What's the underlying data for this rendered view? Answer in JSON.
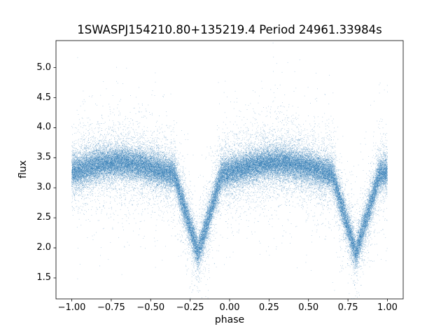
{
  "figure": {
    "background": "#ffffff"
  },
  "chart_data": {
    "type": "scatter",
    "title": "1SWASPJ154210.80+135219.4 Period 24961.33984s",
    "xlabel": "phase",
    "ylabel": "flux",
    "xlim": [
      -1.1,
      1.1
    ],
    "ylim": [
      1.15,
      5.45
    ],
    "grid": false,
    "legend": null,
    "xticks": {
      "values": [
        -1.0,
        -0.75,
        -0.5,
        -0.25,
        0.0,
        0.25,
        0.5,
        0.75,
        1.0
      ],
      "labels": [
        "−1.00",
        "−0.75",
        "−0.50",
        "−0.25",
        "0.00",
        "0.25",
        "0.50",
        "0.75",
        "1.00"
      ]
    },
    "yticks": {
      "values": [
        1.5,
        2.0,
        2.5,
        3.0,
        3.5,
        4.0,
        4.5,
        5.0
      ],
      "labels": [
        "1.5",
        "2.0",
        "2.5",
        "3.0",
        "3.5",
        "4.0",
        "4.5",
        "5.0"
      ]
    },
    "marker": {
      "color": "#2e7bb4",
      "alpha": 0.45,
      "size": 1
    },
    "n_points": 60000,
    "seed": 42,
    "model": {
      "baseline": 3.3,
      "modulation_amplitude": 0.115,
      "modulation_peak_phase": 0.3,
      "eclipse_phase": 0.8,
      "eclipse_depth": 1.27,
      "eclipse_half_width": 0.15,
      "noise_core_sigma": 0.125,
      "noise_mid_sigma": 0.28,
      "noise_mid_fraction": 0.2,
      "noise_tail_sigma": 0.6,
      "noise_tail_fraction": 0.05
    },
    "description": "Phase-folded eclipsing-binary light curve: dense band of points near flux 3.2–3.45 with sinusoidal out-of-eclipse modulation (maximum ≈3.4 near phase 0.3 and −0.7) and deep V-shaped eclipse dips reaching flux ≈2.0 at phase −0.2 and 0.8; sparse outliers from ≈1.4 up to ≈5.25."
  }
}
